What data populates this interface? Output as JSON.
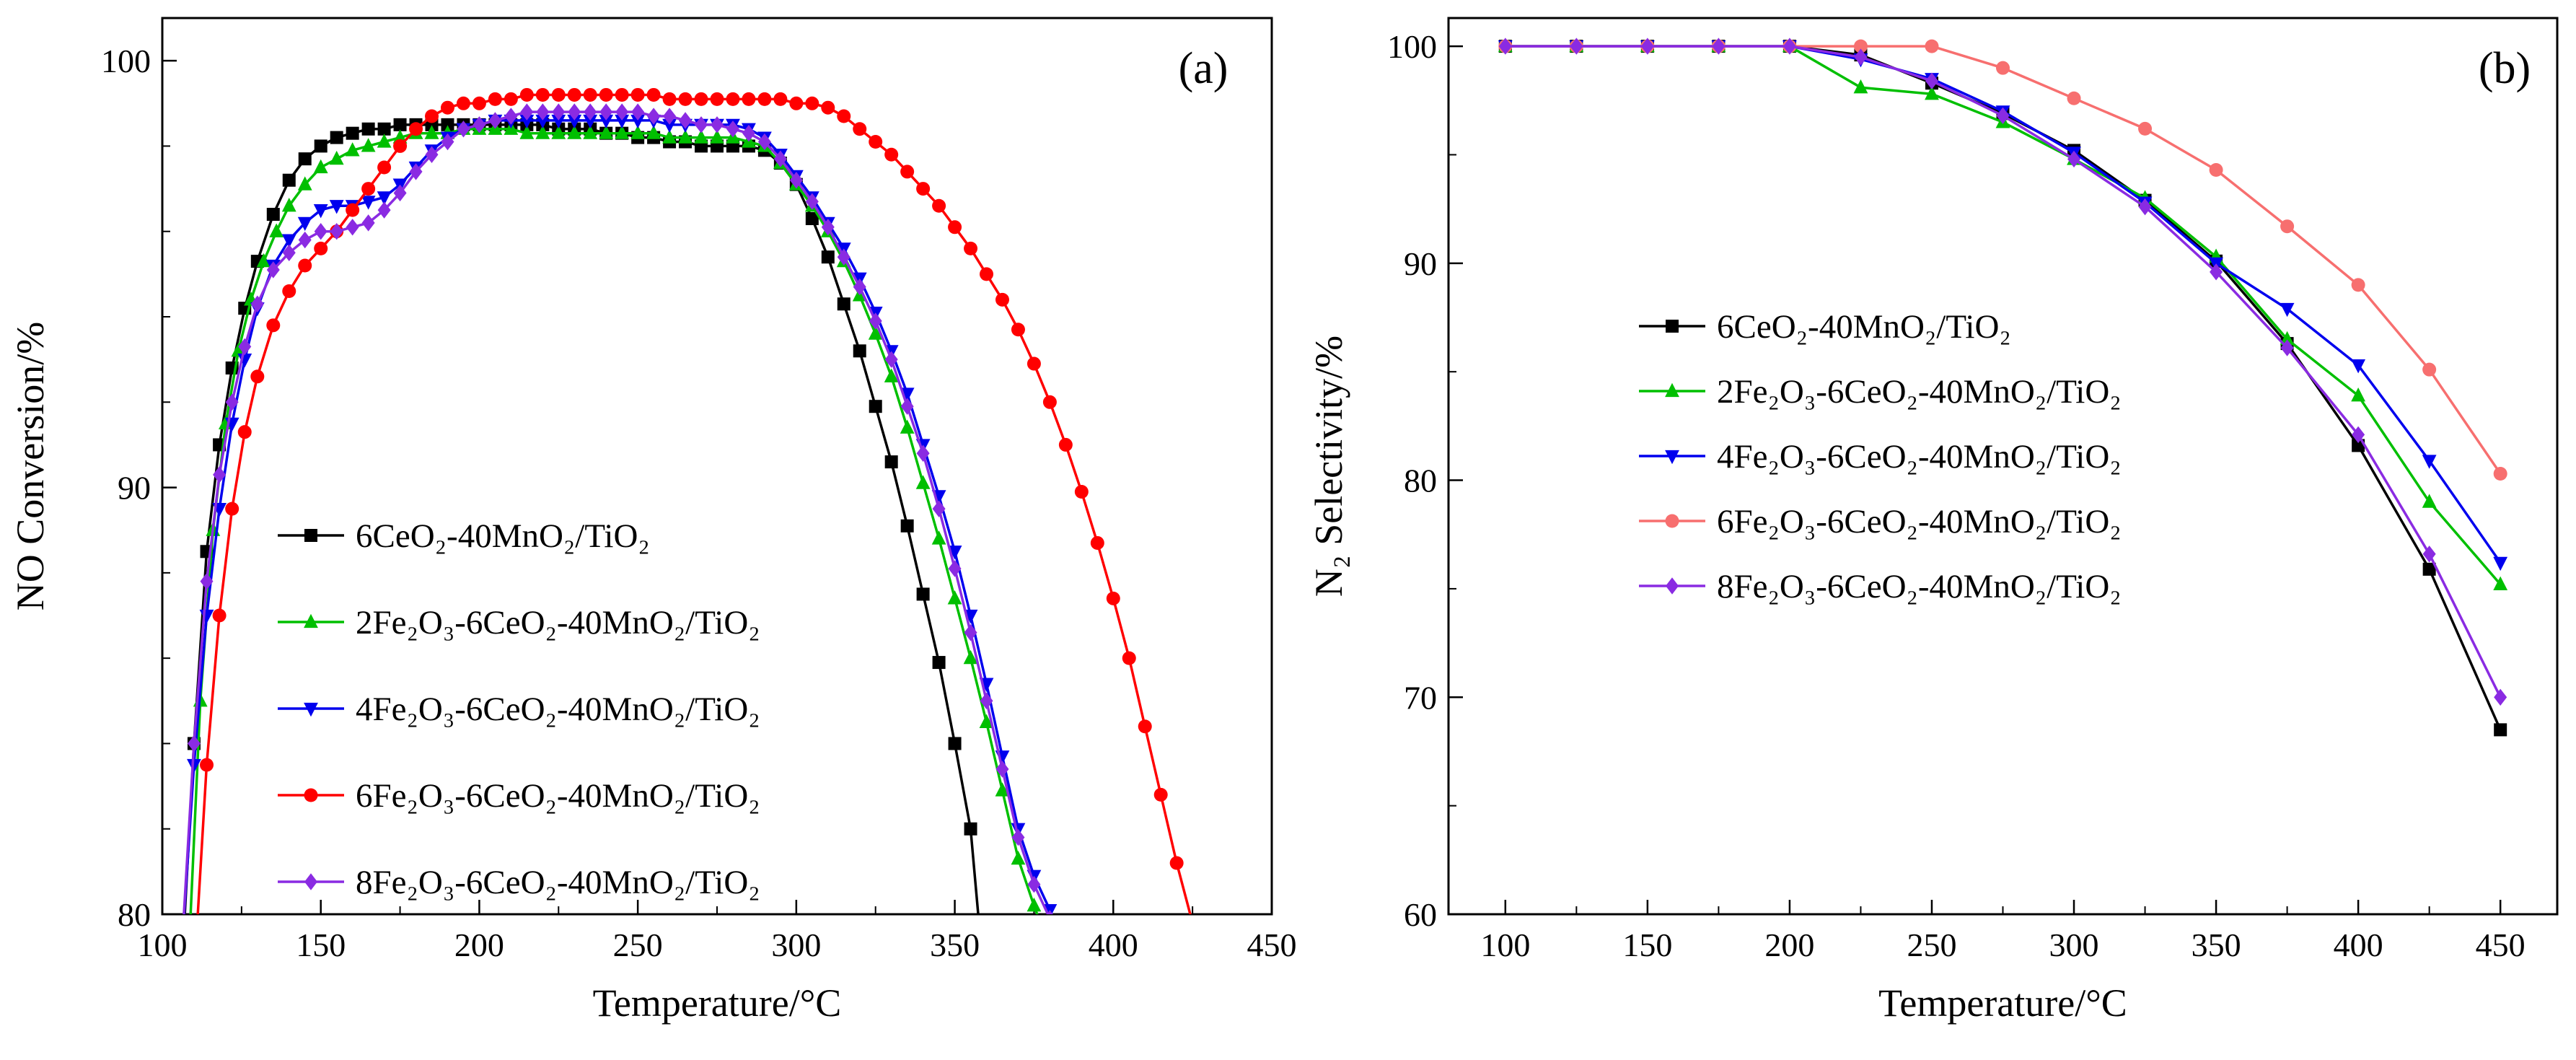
{
  "figure": {
    "background": "#ffffff",
    "text_color": "#000000"
  },
  "chart_data": [
    {
      "type": "line",
      "panel_label": "(a)",
      "xlabel": "Temperature/°C",
      "ylabel": "NO Conversion/%",
      "xlim": [
        100,
        450
      ],
      "ylim": [
        80,
        101
      ],
      "xticks": [
        100,
        150,
        200,
        250,
        300,
        350,
        400,
        450
      ],
      "yticks": [
        80,
        90,
        100
      ],
      "x_minor_step": 25,
      "y_minor_step": 2,
      "grid": false,
      "legend_position": "lower-left-inside",
      "series": [
        {
          "name": "6CeO₂-40MnO₂/TiO₂",
          "color": "#000000",
          "marker": "square",
          "x": [
            106,
            110,
            114,
            118,
            122,
            126,
            130,
            135,
            140,
            145,
            150,
            155,
            160,
            165,
            170,
            175,
            180,
            185,
            190,
            195,
            200,
            205,
            210,
            215,
            220,
            225,
            230,
            235,
            240,
            245,
            250,
            255,
            260,
            265,
            270,
            275,
            280,
            285,
            290,
            295,
            300,
            305,
            310,
            315,
            320,
            325,
            330,
            335,
            340,
            345,
            350,
            355,
            358
          ],
          "y": [
            78.5,
            84,
            88.5,
            91,
            92.8,
            94.2,
            95.3,
            96.4,
            97.2,
            97.7,
            98,
            98.2,
            98.3,
            98.4,
            98.4,
            98.5,
            98.5,
            98.5,
            98.5,
            98.5,
            98.5,
            98.5,
            98.5,
            98.5,
            98.5,
            98.4,
            98.4,
            98.4,
            98.3,
            98.3,
            98.2,
            98.2,
            98.1,
            98.1,
            98,
            98,
            98,
            98,
            97.9,
            97.6,
            97.1,
            96.3,
            95.4,
            94.3,
            93.2,
            91.9,
            90.6,
            89.1,
            87.5,
            85.9,
            84,
            82,
            79.5
          ]
        },
        {
          "name": "2Fe₂O₃-6CeO₂-40MnO₂/TiO₂",
          "color": "#00bf00",
          "marker": "triangle-up",
          "x": [
            108,
            112,
            116,
            120,
            124,
            128,
            132,
            136,
            140,
            145,
            150,
            155,
            160,
            165,
            170,
            175,
            180,
            185,
            190,
            195,
            200,
            205,
            210,
            215,
            220,
            225,
            230,
            235,
            240,
            245,
            250,
            255,
            260,
            265,
            270,
            275,
            280,
            285,
            290,
            295,
            300,
            305,
            310,
            315,
            320,
            325,
            330,
            335,
            340,
            345,
            350,
            355,
            360,
            365,
            370,
            375,
            380
          ],
          "y": [
            78.5,
            85,
            89,
            91.5,
            93.2,
            94.4,
            95.3,
            96,
            96.6,
            97.1,
            97.5,
            97.7,
            97.9,
            98,
            98.1,
            98.2,
            98.3,
            98.3,
            98.3,
            98.4,
            98.4,
            98.4,
            98.4,
            98.3,
            98.3,
            98.3,
            98.3,
            98.3,
            98.3,
            98.3,
            98.3,
            98.3,
            98.2,
            98.2,
            98.2,
            98.2,
            98.2,
            98.1,
            98,
            97.6,
            97.1,
            96.6,
            96,
            95.3,
            94.5,
            93.6,
            92.6,
            91.4,
            90.1,
            88.8,
            87.4,
            86,
            84.5,
            82.9,
            81.3,
            80.2,
            79.2
          ]
        },
        {
          "name": "4Fe₂O₃-6CeO₂-40MnO₂/TiO₂",
          "color": "#0000ee",
          "marker": "triangle-down",
          "x": [
            106,
            110,
            114,
            118,
            122,
            126,
            130,
            135,
            140,
            145,
            150,
            155,
            160,
            165,
            170,
            175,
            180,
            185,
            190,
            195,
            200,
            205,
            210,
            215,
            220,
            225,
            230,
            235,
            240,
            245,
            250,
            255,
            260,
            265,
            270,
            275,
            280,
            285,
            290,
            295,
            300,
            305,
            310,
            315,
            320,
            325,
            330,
            335,
            340,
            345,
            350,
            355,
            360,
            365,
            370,
            375,
            380,
            384
          ],
          "y": [
            79,
            83.5,
            87,
            89.5,
            91.5,
            93,
            94.2,
            95.2,
            95.8,
            96.2,
            96.5,
            96.6,
            96.6,
            96.7,
            96.8,
            97.1,
            97.5,
            97.9,
            98.2,
            98.4,
            98.5,
            98.6,
            98.6,
            98.6,
            98.6,
            98.6,
            98.6,
            98.6,
            98.6,
            98.6,
            98.6,
            98.6,
            98.5,
            98.5,
            98.5,
            98.5,
            98.5,
            98.4,
            98.2,
            97.8,
            97.3,
            96.8,
            96.2,
            95.6,
            94.9,
            94.1,
            93.2,
            92.2,
            91,
            89.8,
            88.5,
            87,
            85.4,
            83.7,
            82,
            80.9,
            80.1,
            79.4
          ]
        },
        {
          "name": "6Fe₂O₃-6CeO₂-40MnO₂/TiO₂",
          "color": "#ff0000",
          "marker": "circle",
          "x": [
            110,
            114,
            118,
            122,
            126,
            130,
            135,
            140,
            145,
            150,
            155,
            160,
            165,
            170,
            175,
            180,
            185,
            190,
            195,
            200,
            205,
            210,
            215,
            220,
            225,
            230,
            235,
            240,
            245,
            250,
            255,
            260,
            265,
            270,
            275,
            280,
            285,
            290,
            295,
            300,
            305,
            310,
            315,
            320,
            325,
            330,
            335,
            340,
            345,
            350,
            355,
            360,
            365,
            370,
            375,
            380,
            385,
            390,
            395,
            400,
            405,
            410,
            415,
            420,
            425,
            428
          ],
          "y": [
            78.5,
            83.5,
            87,
            89.5,
            91.3,
            92.6,
            93.8,
            94.6,
            95.2,
            95.6,
            96,
            96.5,
            97,
            97.5,
            98,
            98.4,
            98.7,
            98.9,
            99,
            99,
            99.1,
            99.1,
            99.2,
            99.2,
            99.2,
            99.2,
            99.2,
            99.2,
            99.2,
            99.2,
            99.2,
            99.1,
            99.1,
            99.1,
            99.1,
            99.1,
            99.1,
            99.1,
            99.1,
            99,
            99,
            98.9,
            98.7,
            98.4,
            98.1,
            97.8,
            97.4,
            97,
            96.6,
            96.1,
            95.6,
            95,
            94.4,
            93.7,
            92.9,
            92,
            91,
            89.9,
            88.7,
            87.4,
            86,
            84.4,
            82.8,
            81.2,
            79.8,
            79
          ]
        },
        {
          "name": "8Fe₂O₃-6CeO₂-40MnO₂/TiO₂",
          "color": "#8a2be2",
          "marker": "diamond",
          "x": [
            106,
            110,
            114,
            118,
            122,
            126,
            130,
            135,
            140,
            145,
            150,
            155,
            160,
            165,
            170,
            175,
            180,
            185,
            190,
            195,
            200,
            205,
            210,
            215,
            220,
            225,
            230,
            235,
            240,
            245,
            250,
            255,
            260,
            265,
            270,
            275,
            280,
            285,
            290,
            295,
            300,
            305,
            310,
            315,
            320,
            325,
            330,
            335,
            340,
            345,
            350,
            355,
            360,
            365,
            370,
            375,
            380,
            386
          ],
          "y": [
            79,
            84,
            87.8,
            90.3,
            92,
            93.3,
            94.3,
            95.1,
            95.5,
            95.8,
            96,
            96,
            96.1,
            96.2,
            96.5,
            96.9,
            97.4,
            97.8,
            98.1,
            98.4,
            98.5,
            98.6,
            98.7,
            98.8,
            98.8,
            98.8,
            98.8,
            98.8,
            98.8,
            98.8,
            98.8,
            98.7,
            98.7,
            98.6,
            98.5,
            98.5,
            98.4,
            98.3,
            98.1,
            97.7,
            97.2,
            96.7,
            96.1,
            95.4,
            94.7,
            93.9,
            93,
            91.9,
            90.8,
            89.5,
            88.1,
            86.6,
            85,
            83.4,
            81.8,
            80.7,
            79.9,
            79.2
          ]
        }
      ]
    },
    {
      "type": "line",
      "panel_label": "(b)",
      "xlabel": "Temperature/°C",
      "ylabel": "N₂ Selectivity/%",
      "xlim": [
        80,
        470
      ],
      "ylim": [
        60,
        101.3
      ],
      "xticks": [
        100,
        150,
        200,
        250,
        300,
        350,
        400,
        450
      ],
      "yticks": [
        60,
        70,
        80,
        90,
        100
      ],
      "x_minor_step": 25,
      "y_minor_step": 5,
      "grid": false,
      "legend_position": "middle-left-inside",
      "x": [
        100,
        125,
        150,
        175,
        200,
        225,
        250,
        275,
        300,
        325,
        350,
        375,
        400,
        425,
        450
      ],
      "series": [
        {
          "name": "6CeO₂-40MnO₂/TiO₂",
          "color": "#000000",
          "marker": "square",
          "y": [
            100,
            100,
            100,
            100,
            100,
            99.6,
            98.3,
            96.9,
            95.2,
            92.9,
            90.1,
            86.3,
            81.6,
            75.9,
            68.5
          ]
        },
        {
          "name": "2Fe₂O₃-6CeO₂-40MnO₂/TiO₂",
          "color": "#00bf00",
          "marker": "triangle-up",
          "y": [
            100,
            100,
            100,
            100,
            100,
            98.1,
            97.8,
            96.5,
            94.8,
            93,
            90.3,
            86.5,
            83.9,
            79,
            75.2
          ]
        },
        {
          "name": "4Fe₂O₃-6CeO₂-40MnO₂/TiO₂",
          "color": "#0000ee",
          "marker": "triangle-down",
          "y": [
            100,
            100,
            100,
            100,
            100,
            99.4,
            98.5,
            97,
            95.1,
            92.8,
            90,
            87.9,
            85.3,
            80.9,
            76.2
          ]
        },
        {
          "name": "6Fe₂O₃-6CeO₂-40MnO₂/TiO₂",
          "color": "#f76f6f",
          "marker": "circle",
          "y": [
            100,
            100,
            100,
            100,
            100,
            100,
            100,
            99,
            97.6,
            96.2,
            94.3,
            91.7,
            89,
            85.1,
            80.3
          ]
        },
        {
          "name": "8Fe₂O₃-6CeO₂-40MnO₂/TiO₂",
          "color": "#8a2be2",
          "marker": "diamond",
          "y": [
            100,
            100,
            100,
            100,
            100,
            99.5,
            98.4,
            96.8,
            94.8,
            92.6,
            89.6,
            86.1,
            82.1,
            76.6,
            70
          ]
        }
      ]
    }
  ]
}
